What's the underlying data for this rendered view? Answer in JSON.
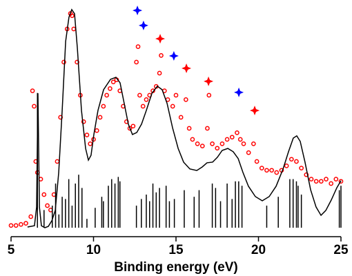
{
  "chart_data": {
    "type": "spectrum",
    "x_label": "Binding energy (eV)",
    "xlim": [
      5,
      25
    ],
    "xticks": [
      5,
      10,
      15,
      20,
      25
    ],
    "ylim": [
      0,
      100
    ],
    "series": [
      {
        "type": "scatter",
        "color": "#ff0000",
        "x": [
          5.0,
          5.3,
          5.6,
          5.9,
          6.2,
          6.3,
          6.4,
          6.5,
          6.6,
          6.8,
          7.0,
          7.2,
          7.4,
          7.6,
          7.8,
          8.0,
          8.2,
          8.4,
          8.6,
          8.7,
          8.8,
          9.0,
          9.2,
          9.4,
          9.6,
          9.8,
          10.0,
          10.2,
          10.4,
          10.6,
          10.8,
          11.0,
          11.2,
          11.4,
          11.6,
          11.8,
          12.0,
          12.2,
          12.4,
          12.6,
          12.7,
          12.8,
          13.0,
          13.2,
          13.4,
          13.6,
          13.8,
          14.0,
          14.1,
          14.3,
          14.5,
          14.8,
          15.0,
          15.3,
          15.6,
          15.8,
          16.0,
          16.3,
          16.6,
          16.9,
          17.0,
          17.2,
          17.5,
          17.8,
          18.1,
          18.4,
          18.7,
          18.9,
          19.1,
          19.4,
          19.7,
          19.9,
          20.2,
          20.5,
          20.8,
          21.1,
          21.4,
          21.7,
          22.0,
          22.3,
          22.6,
          22.9,
          23.2,
          23.5,
          23.8,
          24.1,
          24.4,
          24.7,
          25.0
        ],
        "values": [
          1,
          1,
          1.5,
          2,
          5,
          62,
          55,
          30,
          25,
          22,
          15,
          10,
          8,
          15,
          30,
          50,
          75,
          90,
          97,
          96,
          90,
          75,
          60,
          48,
          42,
          38,
          40,
          44,
          50,
          55,
          60,
          63,
          66,
          67,
          62,
          55,
          48,
          45,
          46,
          75,
          82,
          60,
          55,
          58,
          60,
          62,
          64,
          70,
          78,
          62,
          58,
          55,
          60,
          50,
          58,
          45,
          40,
          38,
          37,
          45,
          60,
          38,
          36,
          38,
          40,
          41,
          43,
          40,
          38,
          34,
          38,
          30,
          27,
          26,
          26,
          25,
          26,
          28,
          31,
          30,
          27,
          24,
          22,
          21,
          21,
          22,
          20,
          22,
          21
        ]
      },
      {
        "type": "line",
        "color": "#000000",
        "x": [
          6.0,
          6.42,
          6.55,
          6.63,
          6.72,
          6.84,
          7.05,
          7.26,
          7.47,
          7.68,
          7.89,
          8.1,
          8.31,
          8.51,
          8.68,
          8.85,
          9.02,
          9.27,
          9.52,
          9.69,
          9.85,
          10.02,
          10.27,
          10.61,
          11.03,
          11.36,
          11.61,
          11.86,
          12.11,
          12.36,
          12.62,
          12.91,
          13.2,
          13.54,
          13.87,
          14.16,
          14.46,
          14.79,
          15.13,
          15.46,
          15.84,
          16.26,
          16.59,
          16.88,
          17.22,
          17.51,
          17.8,
          18.14,
          18.47,
          18.77,
          19.06,
          19.39,
          19.81,
          20.23,
          20.65,
          21.07,
          21.49,
          21.82,
          22.11,
          22.32,
          22.53,
          22.82,
          23.16,
          23.49,
          23.79,
          24.08,
          24.41,
          24.75,
          25.0
        ],
        "values": [
          0.3,
          0.9,
          9.4,
          60.9,
          9.4,
          0.9,
          0,
          0.6,
          3.1,
          7.8,
          25,
          53.1,
          84.4,
          95.3,
          98.8,
          96.9,
          81.3,
          53.1,
          35.9,
          30.6,
          32.8,
          42.2,
          53.1,
          62.5,
          67.2,
          68.1,
          65.6,
          56.3,
          46.9,
          42.2,
          43.1,
          46.9,
          53.1,
          60.9,
          64.1,
          62.5,
          56.3,
          45.3,
          35.9,
          29.7,
          26.6,
          25.9,
          27.5,
          29.4,
          29.7,
          31.9,
          35,
          35.9,
          34.4,
          31.3,
          25,
          18.8,
          14.1,
          12.2,
          14.1,
          18.8,
          26.6,
          34.4,
          40.6,
          41.6,
          39.1,
          29.7,
          17.2,
          9.4,
          5.6,
          7.8,
          12.5,
          18.1,
          21.3
        ]
      },
      {
        "type": "stem",
        "color": "#000000",
        "x": [
          6.6,
          7.0,
          7.5,
          7.7,
          7.9,
          8.1,
          8.3,
          8.5,
          8.7,
          8.9,
          9.1,
          9.3,
          9.6,
          10.1,
          10.5,
          10.6,
          10.9,
          11.1,
          11.3,
          11.5,
          11.6,
          12.6,
          12.9,
          13.2,
          13.4,
          13.6,
          13.8,
          14.0,
          14.4,
          14.6,
          14.9,
          15.5,
          16.1,
          16.4,
          17.2,
          17.4,
          17.7,
          18.1,
          18.4,
          18.6,
          18.8,
          19.0,
          20.5,
          21.2,
          21.9,
          22.1,
          22.3,
          22.4,
          22.6,
          24.9,
          25.0
        ],
        "values": [
          61,
          8,
          10,
          20,
          6,
          14,
          13,
          22,
          10,
          20,
          24,
          18,
          4,
          9,
          14,
          12,
          19,
          22,
          20,
          23,
          21,
          10,
          13,
          15,
          12,
          20,
          16,
          18,
          19,
          12,
          13,
          17,
          14,
          17,
          20,
          18,
          12,
          20,
          13,
          21,
          21,
          19,
          10,
          14,
          22,
          22,
          21,
          19,
          15,
          17,
          19
        ]
      },
      {
        "type": "star",
        "color": "#0000ff",
        "x": [
          12.66,
          13.03,
          14.87,
          18.81
        ],
        "values": [
          98.4,
          91.6,
          77.8,
          61.3
        ]
      },
      {
        "type": "star",
        "color": "#ff0000",
        "x": [
          14.04,
          15.63,
          16.97,
          19.77
        ],
        "values": [
          85.6,
          72.2,
          66.3,
          53.1
        ]
      }
    ]
  }
}
